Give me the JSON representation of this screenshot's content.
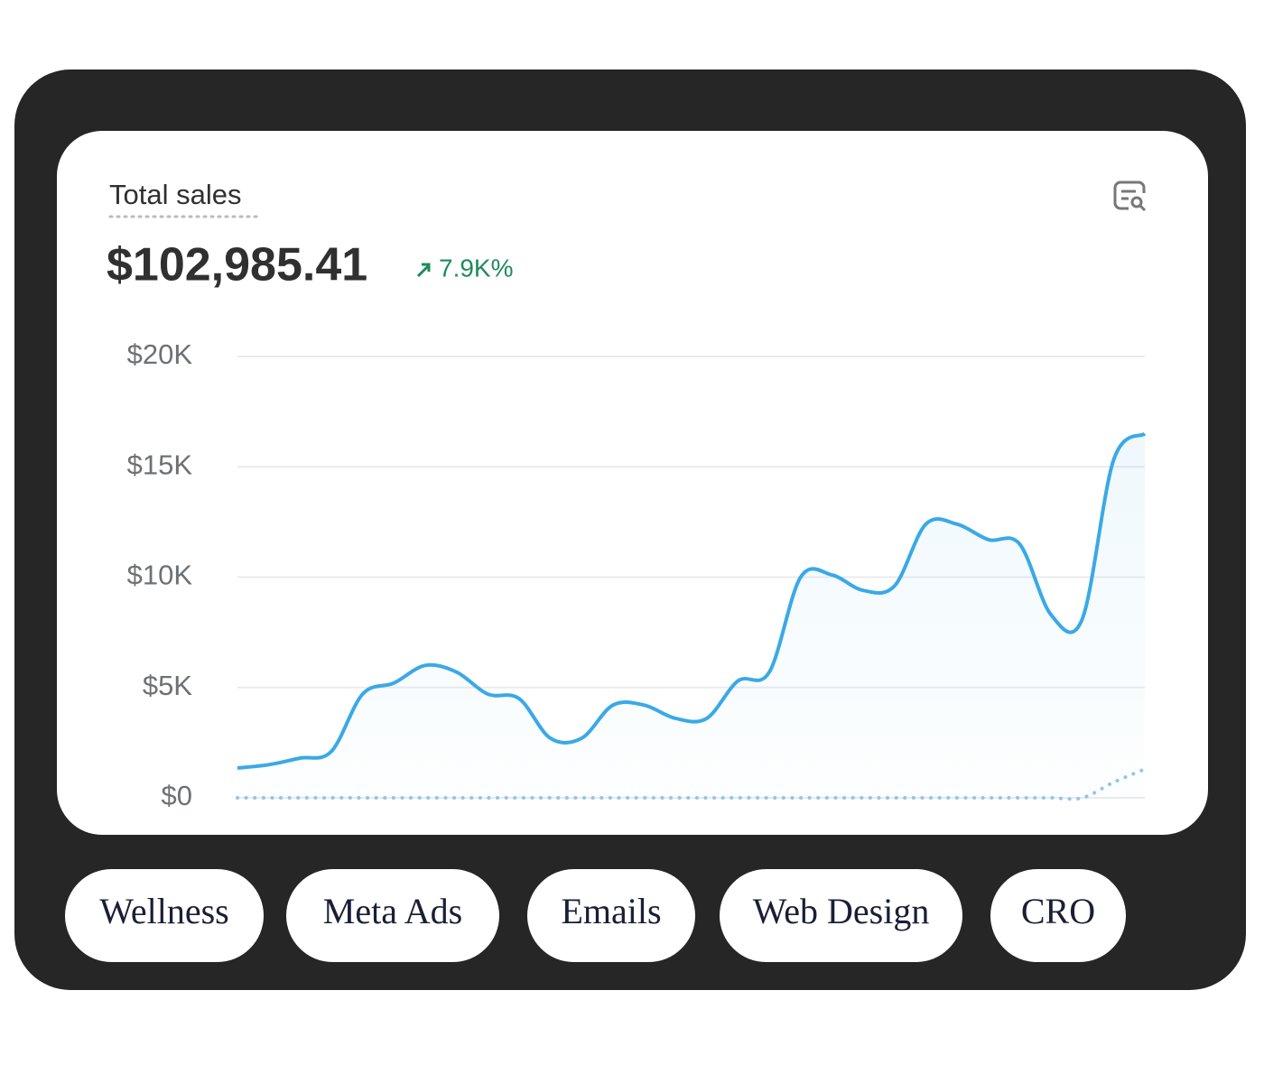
{
  "chart_data": {
    "type": "line",
    "title": "Total sales",
    "total": "$102,985.41",
    "change": "7.9K%",
    "ylim": [
      0,
      20000
    ],
    "yticks": [
      {
        "value": 0,
        "label": "$0"
      },
      {
        "value": 5000,
        "label": "$5K"
      },
      {
        "value": 10000,
        "label": "$10K"
      },
      {
        "value": 15000,
        "label": "$15K"
      },
      {
        "value": 20000,
        "label": "$20K"
      }
    ],
    "grid": true,
    "series": [
      {
        "color": "#3aa9e6",
        "style": "solid",
        "values": [
          1350,
          1500,
          1800,
          2100,
          4700,
          5200,
          6000,
          5700,
          4700,
          4500,
          2700,
          2700,
          4200,
          4200,
          3600,
          3600,
          5300,
          5700,
          10000,
          10100,
          9400,
          9600,
          12400,
          12400,
          11700,
          11500,
          8300,
          8100,
          15300,
          16500
        ]
      },
      {
        "color": "#8fc7e8",
        "style": "dotted",
        "values": [
          0,
          0,
          0,
          0,
          0,
          0,
          0,
          0,
          0,
          0,
          0,
          0,
          0,
          0,
          0,
          0,
          0,
          0,
          0,
          0,
          0,
          0,
          0,
          0,
          0,
          0,
          0,
          0,
          700,
          1300
        ]
      }
    ]
  },
  "tags": [
    "Wellness",
    "Meta Ads",
    "Emails",
    "Web Design",
    "CRO"
  ]
}
